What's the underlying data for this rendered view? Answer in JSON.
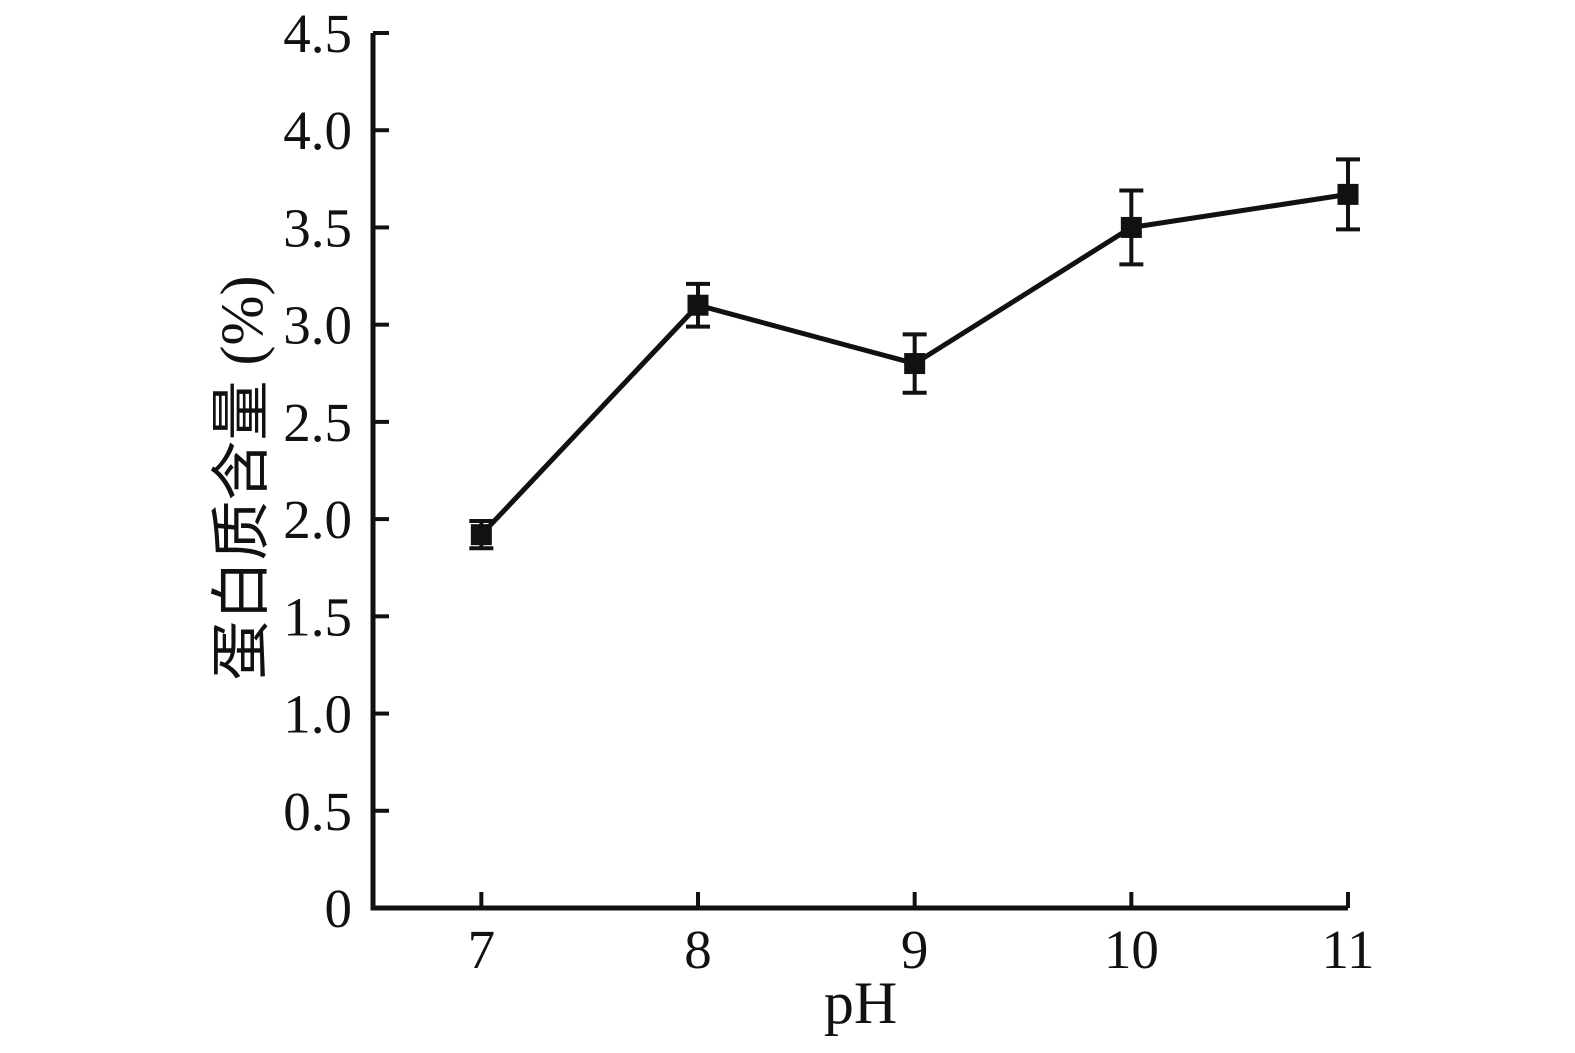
{
  "figure": {
    "background": "#ffffff"
  },
  "chart_data": {
    "type": "line",
    "title": "",
    "xlabel": "pH",
    "ylabel": "蛋白质含量 (%)",
    "x": [
      7,
      8,
      9,
      10,
      11
    ],
    "series": [
      {
        "name": "蛋白质含量",
        "values": [
          1.92,
          3.1,
          2.8,
          3.5,
          3.67
        ],
        "errors": [
          0.07,
          0.11,
          0.15,
          0.19,
          0.18
        ],
        "marker": "filled-square",
        "color": "#111111"
      }
    ],
    "xlim": [
      6.5,
      11
    ],
    "xticks": [
      7,
      8,
      9,
      10,
      11
    ],
    "xtick_labels": [
      "7",
      "8",
      "9",
      "10",
      "11"
    ],
    "ylim": [
      0,
      4.5
    ],
    "yticks": [
      0,
      0.5,
      1,
      1.5,
      2,
      2.5,
      3,
      3.5,
      4,
      4.5
    ],
    "ytick_labels": [
      "0",
      "0.5",
      "1.0",
      "1.5",
      "2.0",
      "2.5",
      "3.0",
      "3.5",
      "4.0",
      "4.5"
    ],
    "grid": false,
    "legend": "none",
    "axis_color": "#111111",
    "error_bars": true,
    "tick_direction": "in"
  }
}
